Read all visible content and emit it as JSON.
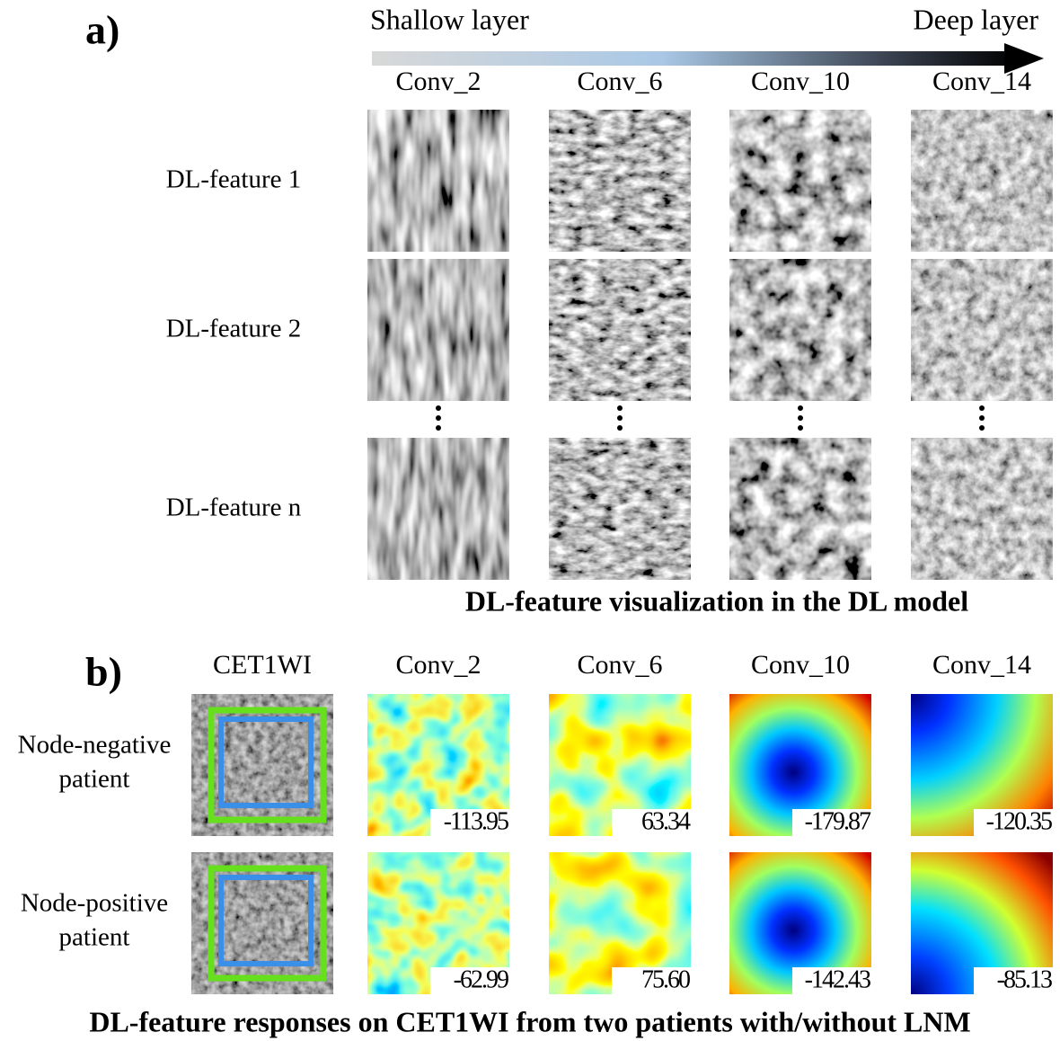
{
  "panel_a": {
    "label": "a)",
    "arrow": {
      "start": "Shallow layer",
      "end": "Deep layer"
    },
    "columns": [
      "Conv_2",
      "Conv_6",
      "Conv_10",
      "Conv_14"
    ],
    "rows": [
      "DL-feature 1",
      "DL-feature 2",
      "DL-feature n"
    ],
    "caption": "DL-feature visualization in the DL model"
  },
  "panel_b": {
    "label": "b)",
    "columns": [
      "CET1WI",
      "Conv_2",
      "Conv_6",
      "Conv_10",
      "Conv_14"
    ],
    "rows": [
      {
        "lines": [
          "Node-negative",
          "patient"
        ],
        "scores": [
          "-113.95",
          "63.34",
          "-179.87",
          "-120.35"
        ]
      },
      {
        "lines": [
          "Node-positive",
          "patient"
        ],
        "scores": [
          "-62.99",
          "75.60",
          "-142.43",
          "-85.13"
        ]
      }
    ],
    "caption": "DL-feature responses on CET1WI from two patients with/without LNM"
  }
}
